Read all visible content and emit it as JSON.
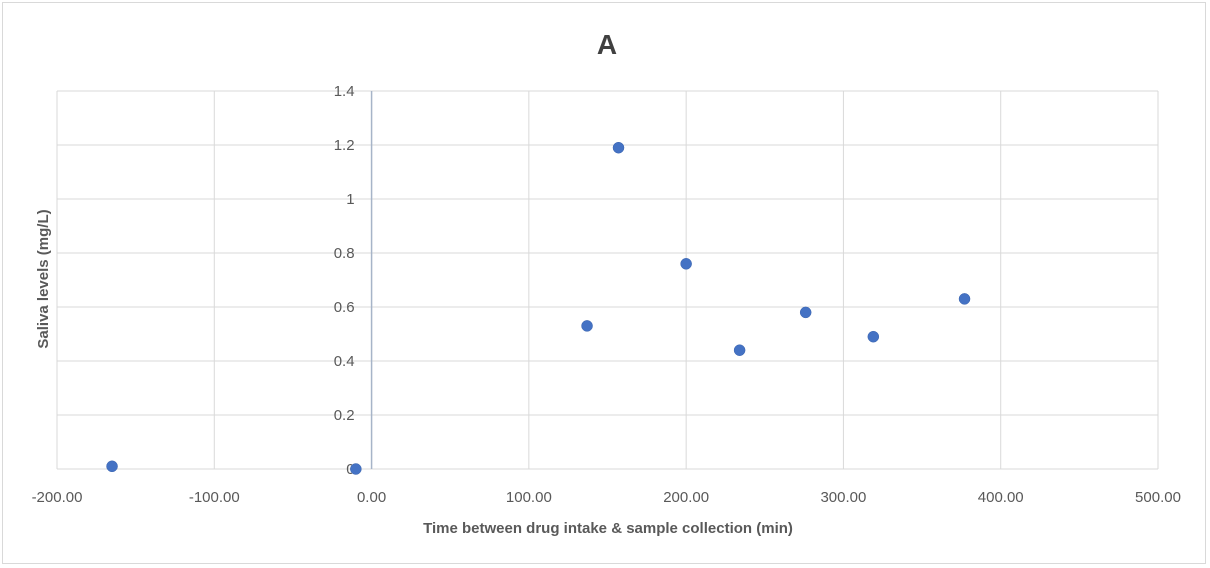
{
  "chart_data": {
    "type": "scatter",
    "title": "A",
    "xlabel": "Time between drug intake & sample collection (min)",
    "ylabel": "Saliva levels (mg/L)",
    "xlim": [
      -200,
      500
    ],
    "ylim": [
      0,
      1.4
    ],
    "x_ticks": [
      "-200.00",
      "-100.00",
      "0.00",
      "100.00",
      "200.00",
      "300.00",
      "400.00",
      "500.00"
    ],
    "y_ticks": [
      "0",
      "0.2",
      "0.4",
      "0.6",
      "0.8",
      "1",
      "1.2",
      "1.4"
    ],
    "grid": true,
    "legend": "none",
    "series": [
      {
        "color": "#4472c4",
        "points": [
          {
            "x": -165,
            "y": 0.01
          },
          {
            "x": -10,
            "y": 0.0
          },
          {
            "x": 137,
            "y": 0.53
          },
          {
            "x": 157,
            "y": 1.19
          },
          {
            "x": 200,
            "y": 0.76
          },
          {
            "x": 234,
            "y": 0.44
          },
          {
            "x": 276,
            "y": 0.58
          },
          {
            "x": 319,
            "y": 0.49
          },
          {
            "x": 377,
            "y": 0.63
          }
        ]
      }
    ]
  }
}
